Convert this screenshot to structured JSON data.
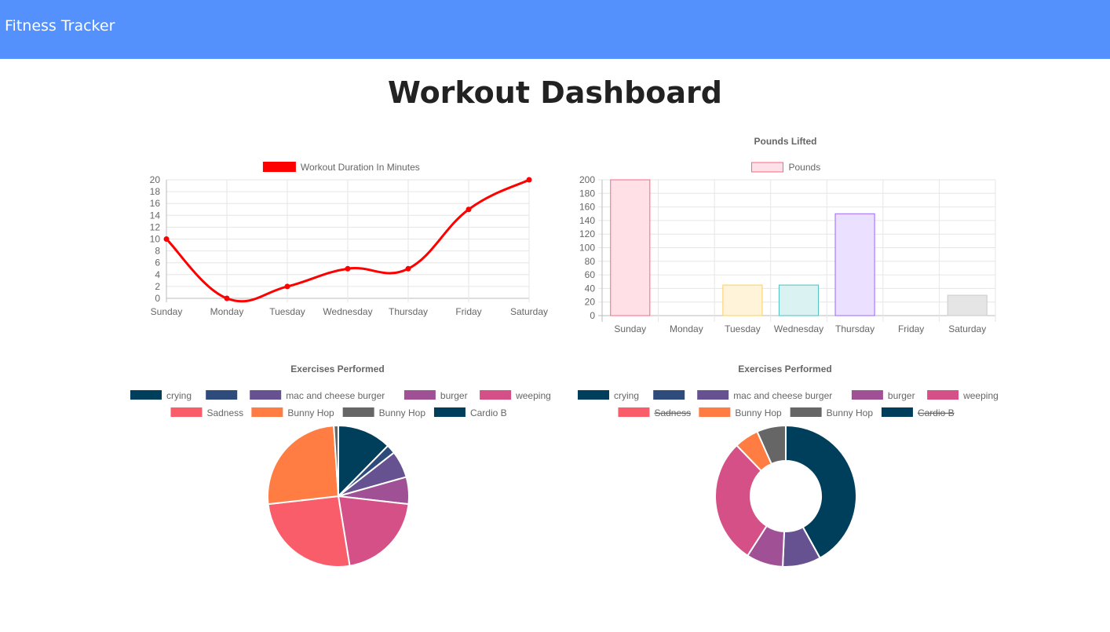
{
  "nav": {
    "brand": "Fitness Tracker"
  },
  "page": {
    "title": "Workout Dashboard"
  },
  "colors": {
    "nav": "#5591fd",
    "palette": [
      "#003f5c",
      "#2f4b7c",
      "#665191",
      "#a05195",
      "#d45087",
      "#f95d6a",
      "#ff7c43",
      "#666666",
      "#003f5c"
    ]
  },
  "chart_data": [
    {
      "type": "line",
      "title": "",
      "legend_position": "top",
      "series": [
        {
          "name": "Workout Duration In Minutes",
          "values": [
            10,
            0,
            2,
            5,
            5,
            15,
            20
          ],
          "color": "#ff0000"
        }
      ],
      "categories": [
        "Sunday",
        "Monday",
        "Tuesday",
        "Wednesday",
        "Thursday",
        "Friday",
        "Saturday"
      ],
      "ylim": [
        0,
        20
      ],
      "yticks": [
        0,
        2,
        4,
        6,
        8,
        10,
        12,
        14,
        16,
        18,
        20
      ],
      "grid": true
    },
    {
      "type": "bar",
      "title": "Pounds Lifted",
      "legend_position": "top",
      "series": [
        {
          "name": "Pounds",
          "values": [
            200,
            0,
            45,
            45,
            150,
            0,
            30
          ]
        }
      ],
      "categories": [
        "Sunday",
        "Monday",
        "Tuesday",
        "Wednesday",
        "Thursday",
        "Friday",
        "Saturday"
      ],
      "bar_colors": [
        {
          "fill": "#ffe0e6",
          "stroke": "#ff6384"
        },
        {
          "fill": "#ddeefa",
          "stroke": "#36a2eb"
        },
        {
          "fill": "#fff4d9",
          "stroke": "#ffce56"
        },
        {
          "fill": "#dbf2f2",
          "stroke": "#4bc0c0"
        },
        {
          "fill": "#ebe0ff",
          "stroke": "#9966ff"
        },
        {
          "fill": "#ffecd9",
          "stroke": "#ff9f40"
        },
        {
          "fill": "#e5e5e5",
          "stroke": "#c9cbcf"
        }
      ],
      "ylim": [
        0,
        200
      ],
      "yticks": [
        0,
        20,
        40,
        60,
        80,
        100,
        120,
        140,
        160,
        180,
        200
      ],
      "grid": true
    },
    {
      "type": "pie",
      "title": "Exercises Performed",
      "legend_position": "top",
      "labels": [
        "crying",
        "",
        "mac and cheese burger",
        "burger",
        "weeping",
        "Sadness",
        "Bunny Hop",
        "Bunny Hop",
        "Cardio B"
      ],
      "values": [
        12,
        2,
        6,
        6,
        20,
        25,
        25,
        1,
        0
      ],
      "hidden": [
        false,
        false,
        false,
        false,
        false,
        false,
        false,
        false,
        false
      ]
    },
    {
      "type": "doughnut",
      "title": "Exercises Performed",
      "legend_position": "top",
      "labels": [
        "crying",
        "",
        "mac and cheese burger",
        "burger",
        "weeping",
        "Sadness",
        "Bunny Hop",
        "Bunny Hop",
        "Cardio B"
      ],
      "values": [
        12,
        0,
        2.5,
        2.4,
        8.2,
        0,
        1.6,
        1.9,
        0
      ],
      "hidden": [
        false,
        false,
        false,
        false,
        false,
        true,
        false,
        false,
        true
      ]
    }
  ]
}
